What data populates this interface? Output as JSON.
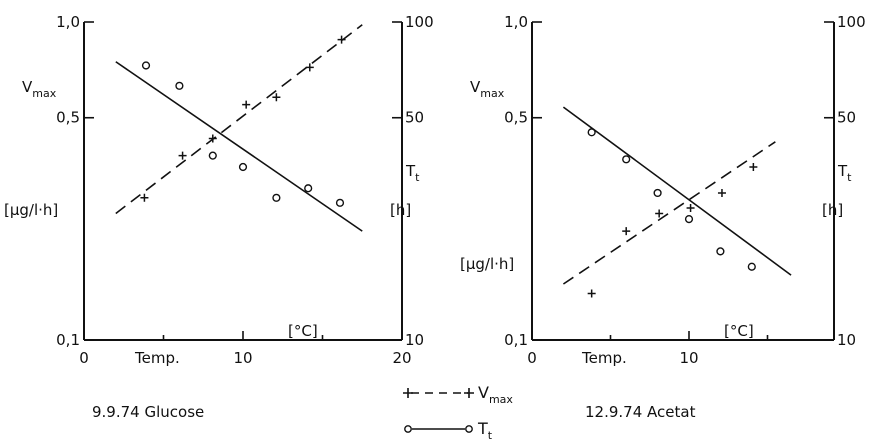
{
  "chart_data": [
    {
      "type": "scatter",
      "caption": "9.9.74  Glucose",
      "xlabel": "[°C]",
      "xlabel_word": "Temp.",
      "xlim": [
        0,
        20
      ],
      "x_ticks": [
        "0",
        "10",
        "20"
      ],
      "y_left": {
        "label_top": "Vmax",
        "label_unit": "[μg/l·h]",
        "scale": "log",
        "range": [
          0.1,
          1.0
        ],
        "ticks": [
          "0,1",
          "0,5",
          "1,0"
        ]
      },
      "y_right": {
        "label_top": "Tt",
        "label_unit": "[h]",
        "scale": "log",
        "range": [
          10,
          100
        ],
        "ticks": [
          "10",
          "50",
          "100"
        ]
      },
      "series": [
        {
          "name": "Vmax",
          "axis": "left",
          "marker": "+",
          "line": "dashed",
          "x": [
            3.8,
            6.2,
            8.1,
            10.2,
            12.1,
            14.2,
            16.2
          ],
          "y": [
            0.28,
            0.38,
            0.43,
            0.55,
            0.58,
            0.72,
            0.88
          ],
          "fit": {
            "x": [
              2,
              17.5
            ],
            "y": [
              0.25,
              0.98
            ]
          }
        },
        {
          "name": "Tt",
          "axis": "right",
          "marker": "o",
          "line": "solid",
          "x": [
            3.9,
            6.0,
            8.1,
            10.0,
            12.1,
            14.1,
            16.1
          ],
          "y": [
            73,
            63,
            38,
            35,
            28,
            30,
            27
          ],
          "fit": {
            "x": [
              2,
              17.5
            ],
            "y": [
              75,
              22
            ]
          }
        }
      ]
    },
    {
      "type": "scatter",
      "caption": "12.9.74  Acetat",
      "xlabel": "[°C]",
      "xlabel_word": "Temp.",
      "xlim": [
        0,
        20
      ],
      "x_ticks": [
        "0",
        "10"
      ],
      "y_left": {
        "label_top": "Vmax",
        "label_unit": "[μg/l·h]",
        "scale": "log",
        "range": [
          0.1,
          1.0
        ],
        "ticks": [
          "0,1",
          "0,5",
          "1,0"
        ]
      },
      "y_right": {
        "label_top": "Tt",
        "label_unit": "[h]",
        "scale": "log",
        "range": [
          10,
          100
        ],
        "ticks": [
          "10",
          "50",
          "100"
        ]
      },
      "series": [
        {
          "name": "Vmax",
          "axis": "left",
          "marker": "+",
          "line": "dashed",
          "x": [
            3.8,
            6.0,
            8.1,
            10.1,
            12.1,
            14.1
          ],
          "y": [
            0.14,
            0.22,
            0.25,
            0.26,
            0.29,
            0.35
          ],
          "fit": {
            "x": [
              2,
              15.5
            ],
            "y": [
              0.15,
              0.42
            ]
          }
        },
        {
          "name": "Tt",
          "axis": "right",
          "marker": "o",
          "line": "solid",
          "x": [
            3.8,
            6.0,
            8.0,
            10.0,
            12.0,
            14.0
          ],
          "y": [
            45,
            37,
            29,
            24,
            19,
            17
          ],
          "fit": {
            "x": [
              2,
              16.5
            ],
            "y": [
              54,
              16
            ]
          }
        }
      ]
    }
  ],
  "legend": [
    {
      "label": "Vmax",
      "marker": "+",
      "line": "dashed"
    },
    {
      "label": "Tt",
      "marker": "o",
      "line": "solid"
    }
  ]
}
